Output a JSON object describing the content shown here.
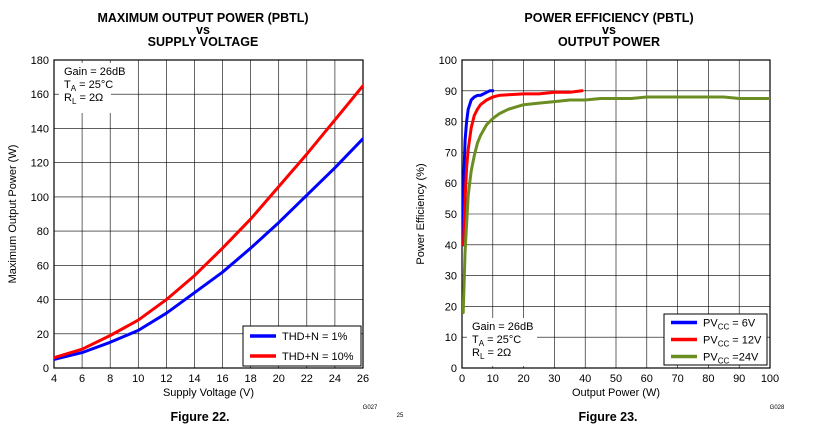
{
  "charts": [
    {
      "title_lines": [
        "MAXIMUM OUTPUT POWER (PBTL)",
        "vs",
        "SUPPLY VOLTAGE"
      ],
      "figure_label": "Figure 22.",
      "code": "G027",
      "notes": [
        "Gain = 26dB",
        "T_A = 25°C",
        "R_L = 2Ω"
      ],
      "legend_items": [
        "THD+N = 1%",
        "THD+N = 10%"
      ]
    },
    {
      "title_lines": [
        "POWER EFFICIENCY (PBTL)",
        "vs",
        "OUTPUT POWER"
      ],
      "figure_label": "Figure 23.",
      "code": "G028",
      "notes": [
        "Gain = 26dB",
        "T_A = 25°C",
        "R_L = 2Ω"
      ],
      "legend_items": [
        "PV_CC = 6V",
        "PV_CC = 12V",
        "PV_CC =24V"
      ]
    }
  ],
  "page_number": "25",
  "chart_data": [
    {
      "type": "line",
      "title": "MAXIMUM OUTPUT POWER (PBTL) vs SUPPLY VOLTAGE",
      "xlabel": "Supply Voltage (V)",
      "ylabel": "Maximum Output Power (W)",
      "xlim": [
        4,
        26
      ],
      "ylim": [
        0,
        180
      ],
      "xticks": [
        4,
        6,
        8,
        10,
        12,
        14,
        16,
        18,
        20,
        22,
        24,
        26
      ],
      "yticks": [
        0,
        20,
        40,
        60,
        80,
        100,
        120,
        140,
        160,
        180
      ],
      "grid": true,
      "legend_position": "bottom-right",
      "series": [
        {
          "name": "THD+N = 1%",
          "color": "#0000ff",
          "x": [
            4,
            6,
            8,
            10,
            12,
            14,
            16,
            18,
            20,
            22,
            24,
            26
          ],
          "y": [
            5,
            9,
            15,
            22,
            32,
            44,
            56,
            70,
            85,
            101,
            117,
            134
          ]
        },
        {
          "name": "THD+N = 10%",
          "color": "#ff0000",
          "x": [
            4,
            6,
            8,
            10,
            12,
            14,
            16,
            18,
            20,
            22,
            24,
            26
          ],
          "y": [
            6,
            11,
            19,
            28,
            40,
            54,
            70,
            87,
            106,
            125,
            145,
            165
          ]
        }
      ]
    },
    {
      "type": "line",
      "title": "POWER EFFICIENCY (PBTL) vs OUTPUT POWER",
      "xlabel": "Output Power (W)",
      "ylabel": "Power Efficiency (%)",
      "xlim": [
        0,
        100
      ],
      "ylim": [
        0,
        100
      ],
      "xticks": [
        0,
        10,
        20,
        30,
        40,
        50,
        60,
        70,
        80,
        90,
        100
      ],
      "yticks": [
        0,
        10,
        20,
        30,
        40,
        50,
        60,
        70,
        80,
        90,
        100
      ],
      "grid": true,
      "legend_position": "bottom-right",
      "series": [
        {
          "name": "PV_CC = 6V",
          "color": "#0000ff",
          "x": [
            0.3,
            0.6,
            1,
            1.5,
            2,
            3,
            4,
            5,
            6,
            7,
            8,
            9,
            10
          ],
          "y": [
            40,
            62,
            74,
            80,
            84,
            87,
            88,
            88.5,
            88.5,
            89,
            89.5,
            90,
            90
          ]
        },
        {
          "name": "PV_CC = 12V",
          "color": "#ff0000",
          "x": [
            0.5,
            1,
            1.5,
            2,
            3,
            4,
            5,
            6,
            8,
            10,
            12,
            15,
            20,
            25,
            30,
            35,
            39
          ],
          "y": [
            40,
            55,
            65,
            71,
            78,
            82,
            84,
            85.5,
            87,
            88,
            88.5,
            88.7,
            89,
            89,
            89.5,
            89.5,
            90
          ]
        },
        {
          "name": "PV_CC =24V",
          "color": "#6b8e23",
          "x": [
            0.4,
            1,
            2,
            3,
            4,
            5,
            6,
            8,
            10,
            12,
            15,
            20,
            25,
            30,
            35,
            40,
            45,
            50,
            55,
            60,
            65,
            70,
            75,
            80,
            85,
            90,
            95,
            100
          ],
          "y": [
            18,
            38,
            56,
            64,
            69,
            73,
            75.5,
            79,
            81,
            82.5,
            84,
            85.5,
            86,
            86.5,
            87,
            87,
            87.5,
            87.5,
            87.5,
            88,
            88,
            88,
            88,
            88,
            88,
            87.5,
            87.5,
            87.5
          ]
        }
      ]
    }
  ]
}
